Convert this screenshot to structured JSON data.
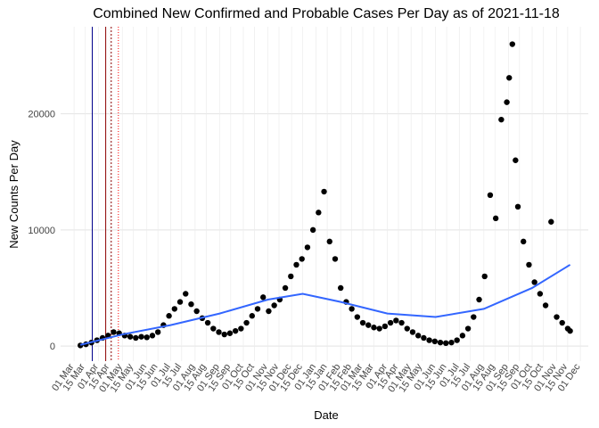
{
  "chart_data": {
    "type": "scatter",
    "title": "Combined New Confirmed and Probable Cases Per Day as of 2021-11-18",
    "x_label": "Date",
    "y_label": "New Counts Per Day",
    "color": "#000000",
    "x": [
      "2020-03-09",
      "2020-03-16",
      "2020-03-23",
      "2020-03-30",
      "2020-04-06",
      "2020-04-13",
      "2020-04-20",
      "2020-04-27",
      "2020-05-04",
      "2020-05-11",
      "2020-05-18",
      "2020-05-25",
      "2020-06-01",
      "2020-06-08",
      "2020-06-15",
      "2020-06-22",
      "2020-06-29",
      "2020-07-06",
      "2020-07-13",
      "2020-07-20",
      "2020-07-27",
      "2020-08-03",
      "2020-08-10",
      "2020-08-17",
      "2020-08-24",
      "2020-08-31",
      "2020-09-07",
      "2020-09-14",
      "2020-09-21",
      "2020-09-28",
      "2020-10-05",
      "2020-10-12",
      "2020-10-19",
      "2020-10-26",
      "2020-11-02",
      "2020-11-09",
      "2020-11-16",
      "2020-11-23",
      "2020-11-30",
      "2020-12-07",
      "2020-12-14",
      "2020-12-21",
      "2020-12-28",
      "2021-01-04",
      "2021-01-11",
      "2021-01-18",
      "2021-01-25",
      "2021-02-01",
      "2021-02-08",
      "2021-02-15",
      "2021-02-22",
      "2021-03-01",
      "2021-03-08",
      "2021-03-15",
      "2021-03-22",
      "2021-03-29",
      "2021-04-05",
      "2021-04-12",
      "2021-04-19",
      "2021-04-26",
      "2021-05-03",
      "2021-05-10",
      "2021-05-17",
      "2021-05-24",
      "2021-05-31",
      "2021-06-07",
      "2021-06-14",
      "2021-06-21",
      "2021-06-28",
      "2021-07-05",
      "2021-07-12",
      "2021-07-19",
      "2021-07-26",
      "2021-08-02",
      "2021-08-09",
      "2021-08-16",
      "2021-08-23",
      "2021-08-30",
      "2021-09-02",
      "2021-09-06",
      "2021-09-10",
      "2021-09-13",
      "2021-09-20",
      "2021-09-27",
      "2021-10-04",
      "2021-10-11",
      "2021-10-18",
      "2021-10-25",
      "2021-11-01",
      "2021-11-08",
      "2021-11-15",
      "2021-11-18"
    ],
    "values": [
      50,
      150,
      300,
      500,
      700,
      900,
      1200,
      1100,
      900,
      800,
      700,
      800,
      750,
      900,
      1200,
      1800,
      2600,
      3200,
      3800,
      4500,
      3600,
      3000,
      2400,
      2000,
      1500,
      1200,
      1000,
      1100,
      1300,
      1500,
      2000,
      2600,
      3200,
      4200,
      3000,
      3500,
      4000,
      5000,
      6000,
      7000,
      7500,
      8500,
      10000,
      11500,
      13300,
      9000,
      7500,
      5000,
      3800,
      3200,
      2500,
      2000,
      1800,
      1600,
      1500,
      1700,
      2000,
      2200,
      2000,
      1500,
      1200,
      900,
      700,
      500,
      400,
      300,
      250,
      300,
      500,
      900,
      1500,
      2500,
      4000,
      6000,
      13000,
      11000,
      19500,
      21000,
      23100,
      26000,
      16000,
      12000,
      9000,
      7000,
      5500,
      4500,
      3500,
      10700,
      2500,
      2000,
      1500,
      1300
    ],
    "smooth": {
      "color": "#3366ff",
      "x": [
        "2020-03-09",
        "2020-05-01",
        "2020-07-01",
        "2020-09-01",
        "2020-11-01",
        "2020-12-15",
        "2021-02-01",
        "2021-04-01",
        "2021-06-01",
        "2021-08-01",
        "2021-10-01",
        "2021-11-18"
      ],
      "values": [
        100,
        1000,
        1800,
        2800,
        4000,
        4500,
        3800,
        2800,
        2500,
        3200,
        5000,
        7000
      ]
    },
    "vlines": [
      {
        "x": "2020-03-24",
        "color": "#00008b",
        "dash": "none"
      },
      {
        "x": "2020-04-10",
        "color": "#8b0000",
        "dash": "none"
      },
      {
        "x": "2020-04-17",
        "color": "#8b0000",
        "dash": "2,2"
      },
      {
        "x": "2020-04-26",
        "color": "#ff0000",
        "dash": "1,2"
      }
    ],
    "xlim": [
      "2020-02-13",
      "2021-12-11"
    ],
    "ylim": [
      -1300,
      27500
    ],
    "yticks": [
      0,
      10000,
      20000
    ],
    "xticks": [
      {
        "value": "2020-03-01",
        "label": "01 Mar"
      },
      {
        "value": "2020-03-15",
        "label": "15 Mar"
      },
      {
        "value": "2020-04-01",
        "label": "01 Apr"
      },
      {
        "value": "2020-04-15",
        "label": "15 Apr"
      },
      {
        "value": "2020-05-01",
        "label": "01 May"
      },
      {
        "value": "2020-05-15",
        "label": "15 May"
      },
      {
        "value": "2020-06-01",
        "label": "01 Jun"
      },
      {
        "value": "2020-06-15",
        "label": "15 Jun"
      },
      {
        "value": "2020-07-01",
        "label": "01 Jul"
      },
      {
        "value": "2020-07-15",
        "label": "15 Jul"
      },
      {
        "value": "2020-08-01",
        "label": "01 Aug"
      },
      {
        "value": "2020-08-15",
        "label": "15 Aug"
      },
      {
        "value": "2020-09-01",
        "label": "01 Sep"
      },
      {
        "value": "2020-09-15",
        "label": "15 Sep"
      },
      {
        "value": "2020-10-01",
        "label": "01 Oct"
      },
      {
        "value": "2020-10-15",
        "label": "15 Oct"
      },
      {
        "value": "2020-11-01",
        "label": "01 Nov"
      },
      {
        "value": "2020-11-15",
        "label": "15 Nov"
      },
      {
        "value": "2020-12-01",
        "label": "01 Dec"
      },
      {
        "value": "2020-12-15",
        "label": "15 Dec"
      },
      {
        "value": "2021-01-01",
        "label": "01 Jan"
      },
      {
        "value": "2021-01-15",
        "label": "15 Jan"
      },
      {
        "value": "2021-02-01",
        "label": "01 Feb"
      },
      {
        "value": "2021-02-15",
        "label": "15 Feb"
      },
      {
        "value": "2021-03-01",
        "label": "01 Mar"
      },
      {
        "value": "2021-03-15",
        "label": "15 Mar"
      },
      {
        "value": "2021-04-01",
        "label": "01 Apr"
      },
      {
        "value": "2021-04-15",
        "label": "15 Apr"
      },
      {
        "value": "2021-05-01",
        "label": "01 May"
      },
      {
        "value": "2021-05-15",
        "label": "15 May"
      },
      {
        "value": "2021-06-01",
        "label": "01 Jun"
      },
      {
        "value": "2021-06-15",
        "label": "15 Jun"
      },
      {
        "value": "2021-07-01",
        "label": "01 Jul"
      },
      {
        "value": "2021-07-15",
        "label": "15 Jul"
      },
      {
        "value": "2021-08-01",
        "label": "01 Aug"
      },
      {
        "value": "2021-08-15",
        "label": "15 Aug"
      },
      {
        "value": "2021-09-01",
        "label": "01 Sep"
      },
      {
        "value": "2021-09-15",
        "label": "15 Sep"
      },
      {
        "value": "2021-10-01",
        "label": "01 Oct"
      },
      {
        "value": "2021-10-15",
        "label": "15 Oct"
      },
      {
        "value": "2021-11-01",
        "label": "01 Nov"
      },
      {
        "value": "2021-11-15",
        "label": "15 Nov"
      },
      {
        "value": "2021-12-01",
        "label": "01 Dec"
      }
    ],
    "grid": true
  }
}
